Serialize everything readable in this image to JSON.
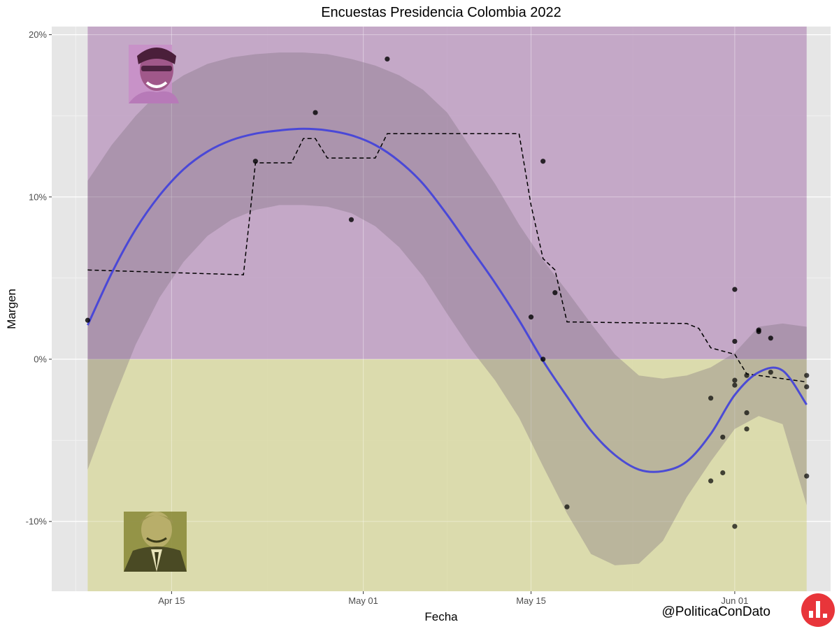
{
  "chart_data": {
    "type": "scatter",
    "title": "Encuestas Presidencia Colombia 2022",
    "xlabel": "Fecha",
    "ylabel": "Margen",
    "x_domain": [
      "2022-04-05",
      "2022-06-09"
    ],
    "ylim": [
      -14.3,
      20.5
    ],
    "y_ticks": [
      20,
      10,
      0,
      -10
    ],
    "y_tick_labels": [
      "20%",
      "10%",
      "0%",
      "-10%"
    ],
    "x_ticks": [
      "2022-04-15",
      "2022-05-01",
      "2022-05-15",
      "2022-06-01"
    ],
    "x_tick_labels": [
      "Apr 15",
      "May 01",
      "May 15",
      "Jun 01"
    ],
    "grid": true,
    "background_bands": [
      {
        "from": 0,
        "to": 20.5,
        "x_from": "2022-04-08",
        "x_to": "2022-06-07",
        "color": "#bf9fc3"
      },
      {
        "from": -14.3,
        "to": 0,
        "x_from": "2022-04-08",
        "x_to": "2022-06-07",
        "color": "#d9d9a5"
      }
    ],
    "colors": {
      "smooth": "#3f3fdc",
      "ribbon": "#7f6f7f",
      "points": "#000000",
      "dashed": "#000000",
      "panel": "#e6e6e6"
    },
    "points": [
      {
        "x": "2022-04-08",
        "y": 2.4
      },
      {
        "x": "2022-04-22",
        "y": 12.2
      },
      {
        "x": "2022-04-27",
        "y": 15.2
      },
      {
        "x": "2022-04-30",
        "y": 8.6
      },
      {
        "x": "2022-05-03",
        "y": 18.5
      },
      {
        "x": "2022-05-15",
        "y": 2.6
      },
      {
        "x": "2022-05-16",
        "y": 12.2
      },
      {
        "x": "2022-05-16",
        "y": 0.0
      },
      {
        "x": "2022-05-17",
        "y": 4.1
      },
      {
        "x": "2022-05-18",
        "y": -9.1
      },
      {
        "x": "2022-05-30",
        "y": -2.4
      },
      {
        "x": "2022-05-30",
        "y": -7.5
      },
      {
        "x": "2022-05-31",
        "y": -4.8
      },
      {
        "x": "2022-05-31",
        "y": -7.0
      },
      {
        "x": "2022-06-01",
        "y": 4.3
      },
      {
        "x": "2022-06-01",
        "y": 1.1
      },
      {
        "x": "2022-06-01",
        "y": -1.3
      },
      {
        "x": "2022-06-01",
        "y": -1.6
      },
      {
        "x": "2022-06-01",
        "y": -10.3
      },
      {
        "x": "2022-06-02",
        "y": -1.0
      },
      {
        "x": "2022-06-02",
        "y": -3.3
      },
      {
        "x": "2022-06-02",
        "y": -4.3
      },
      {
        "x": "2022-06-03",
        "y": 1.8
      },
      {
        "x": "2022-06-03",
        "y": 1.7
      },
      {
        "x": "2022-06-04",
        "y": 1.3
      },
      {
        "x": "2022-06-04",
        "y": -0.8
      },
      {
        "x": "2022-06-07",
        "y": -1.0
      },
      {
        "x": "2022-06-07",
        "y": -1.7
      },
      {
        "x": "2022-06-07",
        "y": -7.2
      }
    ],
    "smooth": {
      "x": [
        "2022-04-08",
        "2022-04-10",
        "2022-04-12",
        "2022-04-14",
        "2022-04-16",
        "2022-04-18",
        "2022-04-20",
        "2022-04-22",
        "2022-04-24",
        "2022-04-26",
        "2022-04-28",
        "2022-04-30",
        "2022-05-02",
        "2022-05-04",
        "2022-05-06",
        "2022-05-08",
        "2022-05-10",
        "2022-05-12",
        "2022-05-14",
        "2022-05-16",
        "2022-05-18",
        "2022-05-20",
        "2022-05-22",
        "2022-05-24",
        "2022-05-26",
        "2022-05-28",
        "2022-05-30",
        "2022-06-01",
        "2022-06-03",
        "2022-06-05",
        "2022-06-07"
      ],
      "y": [
        2.1,
        5.3,
        8.0,
        10.1,
        11.7,
        12.8,
        13.5,
        13.9,
        14.1,
        14.2,
        14.1,
        13.8,
        13.2,
        12.2,
        10.8,
        8.9,
        6.8,
        4.7,
        2.4,
        -0.1,
        -2.3,
        -4.4,
        -5.9,
        -6.8,
        -6.9,
        -6.3,
        -4.6,
        -2.2,
        -0.8,
        -0.7,
        -2.8
      ],
      "lower": [
        -6.8,
        -2.8,
        0.9,
        3.8,
        6.0,
        7.6,
        8.6,
        9.2,
        9.5,
        9.5,
        9.4,
        9.0,
        8.2,
        6.9,
        5.1,
        2.8,
        0.6,
        -1.3,
        -3.6,
        -6.6,
        -9.5,
        -12.0,
        -12.7,
        -12.6,
        -11.2,
        -8.5,
        -6.3,
        -4.3,
        -3.5,
        -4.0,
        -9.0
      ],
      "upper": [
        11.0,
        13.2,
        15.0,
        16.5,
        17.5,
        18.2,
        18.6,
        18.8,
        18.9,
        18.9,
        18.8,
        18.5,
        18.1,
        17.5,
        16.6,
        15.2,
        13.0,
        10.8,
        8.3,
        6.1,
        4.2,
        2.2,
        0.3,
        -1.0,
        -1.2,
        -1.0,
        -0.5,
        0.4,
        2.0,
        2.2,
        2.0
      ]
    },
    "dashed": {
      "x": [
        "2022-04-08",
        "2022-04-21",
        "2022-04-22",
        "2022-04-23",
        "2022-04-25",
        "2022-04-26",
        "2022-04-27",
        "2022-04-28",
        "2022-04-29",
        "2022-05-01",
        "2022-05-02",
        "2022-05-03",
        "2022-05-14",
        "2022-05-15",
        "2022-05-16",
        "2022-05-17",
        "2022-05-18",
        "2022-05-28",
        "2022-05-29",
        "2022-05-30",
        "2022-06-01",
        "2022-06-02",
        "2022-06-07"
      ],
      "y": [
        5.5,
        5.2,
        12.1,
        12.1,
        12.1,
        13.6,
        13.6,
        12.4,
        12.4,
        12.4,
        12.4,
        13.9,
        13.9,
        9.5,
        6.2,
        5.5,
        2.3,
        2.2,
        1.9,
        0.7,
        0.3,
        -0.9,
        -1.4
      ]
    },
    "candidates": [
      {
        "position": "top-left",
        "band": "positive",
        "tint": "#c98ec8"
      },
      {
        "position": "bottom-left",
        "band": "negative",
        "tint": "#8c8c3c"
      }
    ]
  },
  "credit": "@PoliticaConDato",
  "logo": {
    "color": "#e8353a",
    "icon": "bar-chart-logo-icon"
  }
}
